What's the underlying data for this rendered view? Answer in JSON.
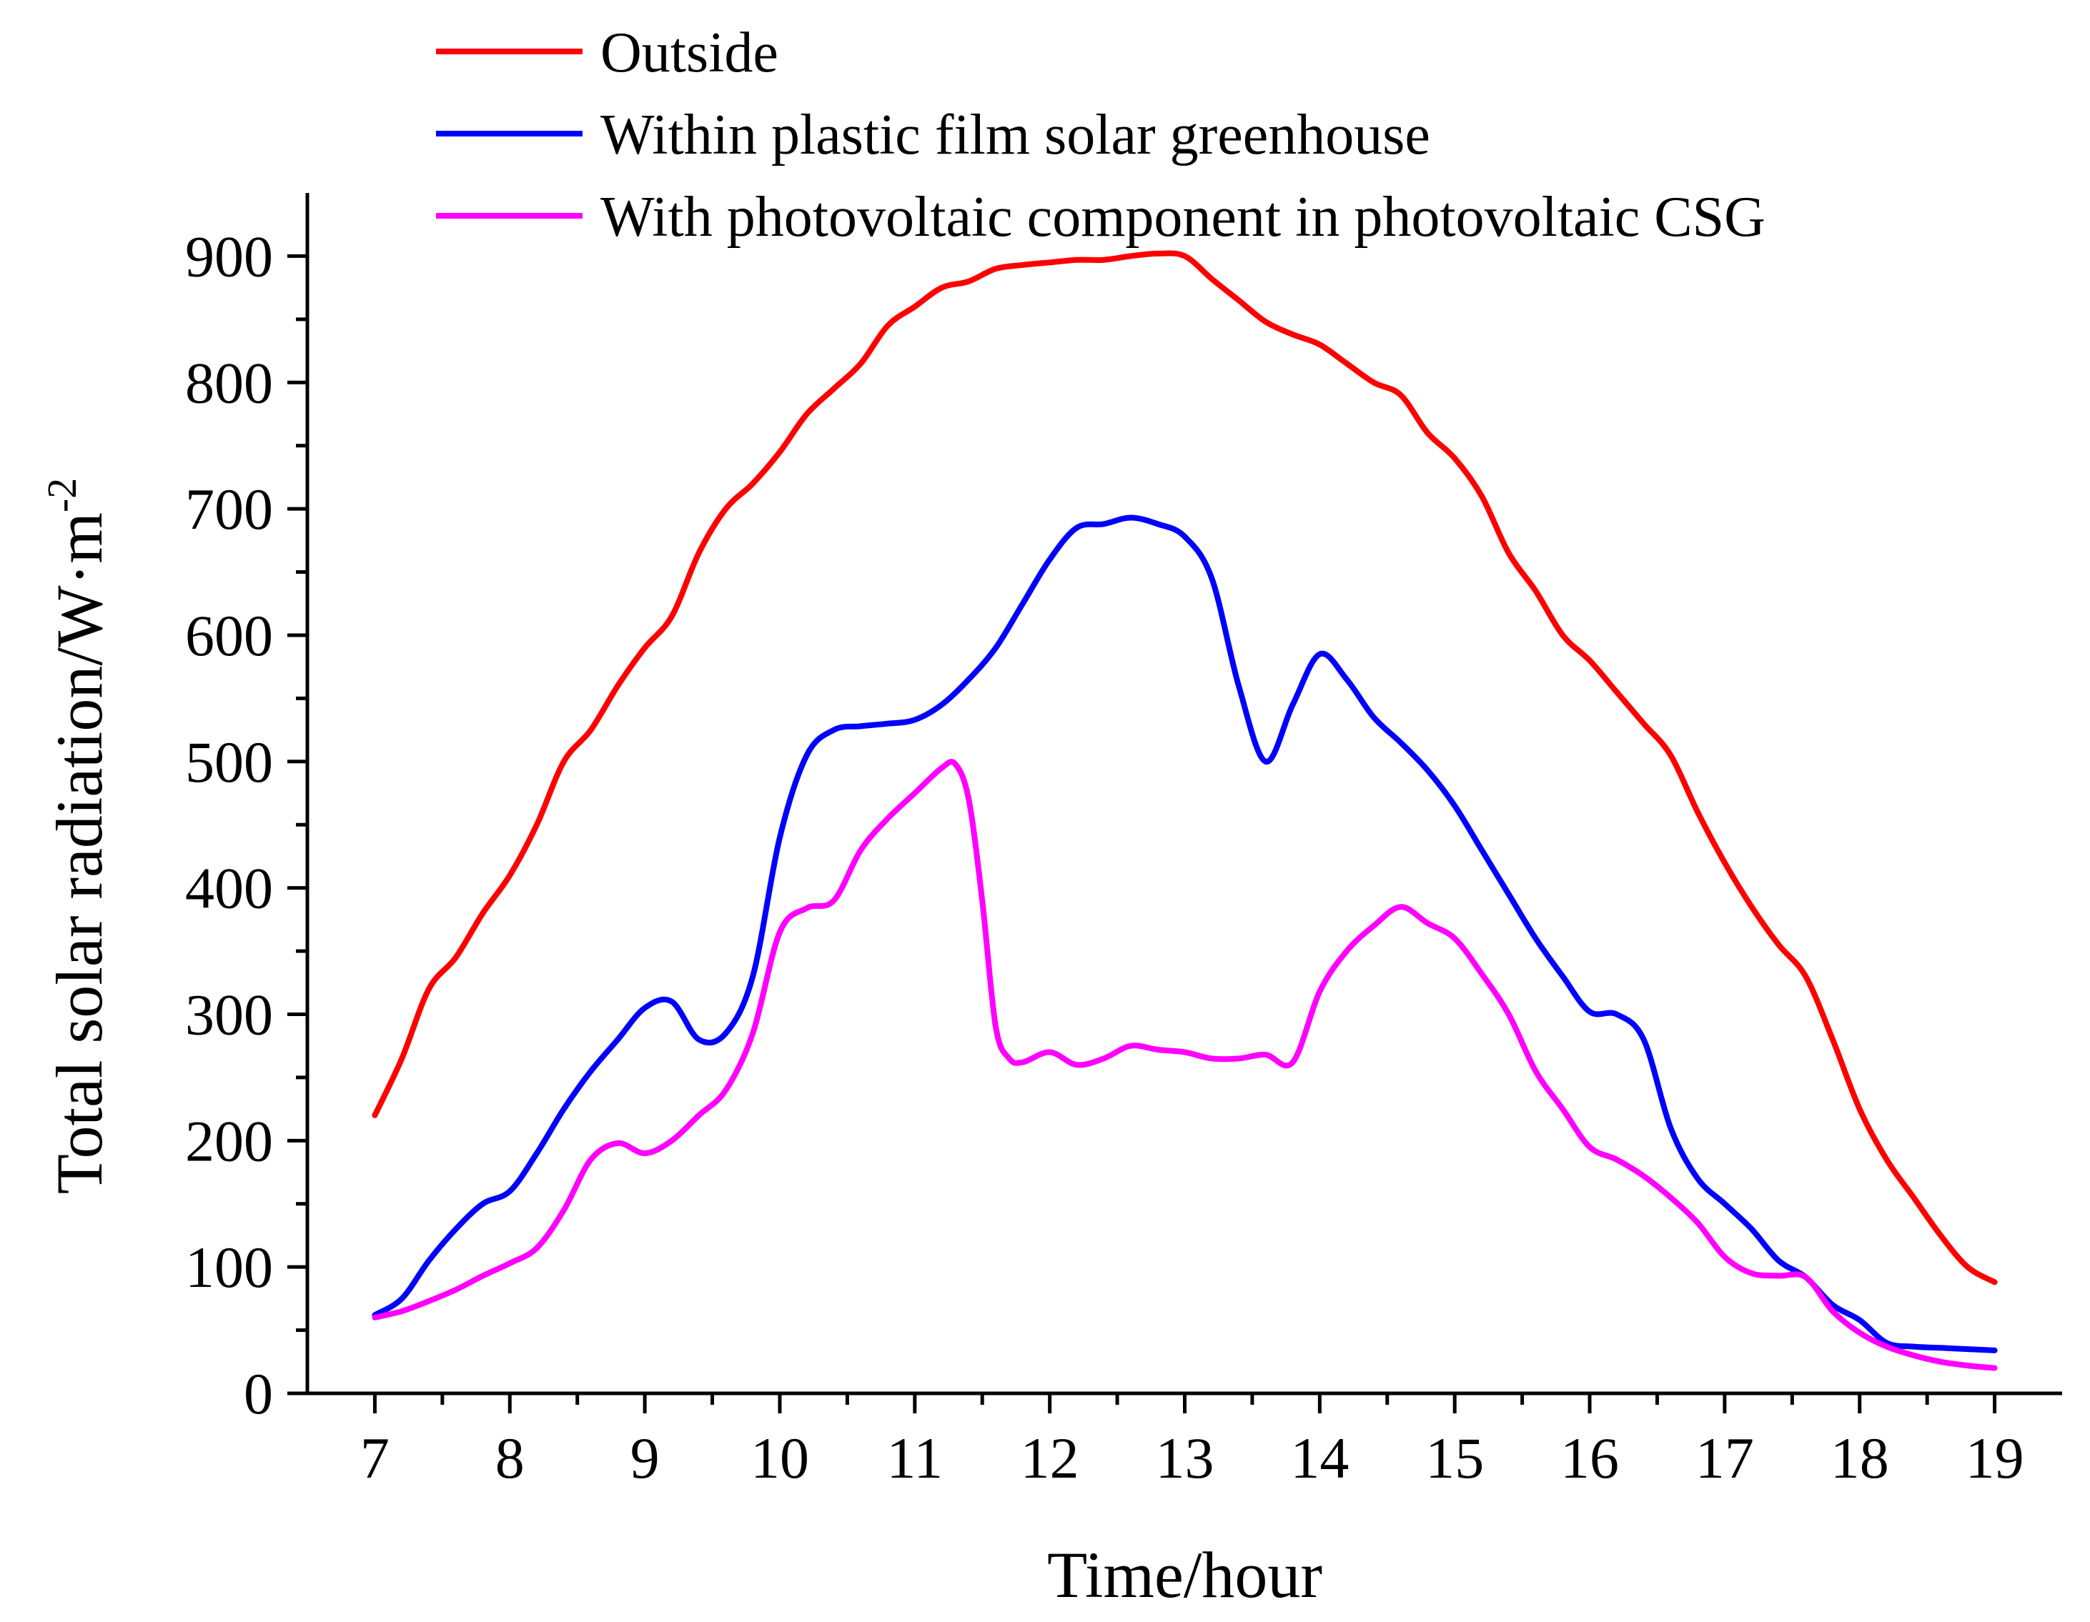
{
  "chart_data": {
    "type": "line",
    "title": "",
    "xlabel": "Time/hour",
    "ylabel": "Total solar radiation/W·m",
    "ylabel_superscript": "-2",
    "xlim": [
      6.5,
      19.5
    ],
    "ylim": [
      0,
      950
    ],
    "x_ticks": [
      7,
      8,
      9,
      10,
      11,
      12,
      13,
      14,
      15,
      16,
      17,
      18,
      19
    ],
    "y_ticks": [
      0,
      100,
      200,
      300,
      400,
      500,
      600,
      700,
      800,
      900
    ],
    "legend_position": "top",
    "series": [
      {
        "name": "Outside",
        "color": "#ff0000",
        "x": [
          7,
          7.2,
          7.4,
          7.6,
          7.8,
          8,
          8.2,
          8.4,
          8.6,
          8.8,
          9,
          9.2,
          9.4,
          9.6,
          9.8,
          10,
          10.2,
          10.4,
          10.6,
          10.8,
          11,
          11.2,
          11.4,
          11.6,
          11.8,
          12,
          12.2,
          12.4,
          12.6,
          12.8,
          13,
          13.2,
          13.4,
          13.6,
          13.8,
          14,
          14.2,
          14.4,
          14.6,
          14.8,
          15,
          15.2,
          15.4,
          15.6,
          15.8,
          16,
          16.2,
          16.4,
          16.6,
          16.8,
          17,
          17.2,
          17.4,
          17.6,
          17.8,
          18,
          18.2,
          18.4,
          18.6,
          18.8,
          19
        ],
        "values": [
          220,
          265,
          320,
          345,
          380,
          410,
          450,
          500,
          525,
          560,
          590,
          615,
          665,
          700,
          720,
          745,
          775,
          795,
          815,
          845,
          860,
          875,
          880,
          890,
          893,
          895,
          897,
          897,
          900,
          902,
          900,
          882,
          865,
          848,
          838,
          830,
          815,
          800,
          790,
          760,
          740,
          710,
          665,
          635,
          600,
          580,
          555,
          530,
          505,
          460,
          420,
          385,
          355,
          330,
          280,
          225,
          185,
          155,
          125,
          100,
          88
        ]
      },
      {
        "name": "Within plastic film solar greenhouse",
        "color": "#0000ff",
        "x": [
          7,
          7.2,
          7.4,
          7.6,
          7.8,
          8,
          8.2,
          8.4,
          8.6,
          8.8,
          9,
          9.2,
          9.4,
          9.6,
          9.8,
          10,
          10.2,
          10.4,
          10.6,
          10.8,
          11,
          11.2,
          11.4,
          11.6,
          11.8,
          12,
          12.2,
          12.4,
          12.6,
          12.8,
          13,
          13.2,
          13.4,
          13.6,
          13.8,
          14,
          14.2,
          14.4,
          14.6,
          14.8,
          15,
          15.2,
          15.4,
          15.6,
          15.8,
          16,
          16.2,
          16.4,
          16.6,
          16.8,
          17,
          17.2,
          17.4,
          17.6,
          17.8,
          18,
          18.2,
          18.4,
          18.6,
          18.8,
          19
        ],
        "values": [
          62,
          75,
          105,
          130,
          150,
          160,
          190,
          225,
          255,
          280,
          305,
          310,
          280,
          285,
          330,
          440,
          505,
          525,
          528,
          530,
          533,
          545,
          565,
          590,
          625,
          660,
          685,
          688,
          693,
          688,
          678,
          645,
          560,
          500,
          545,
          585,
          565,
          535,
          515,
          493,
          465,
          430,
          395,
          360,
          330,
          302,
          300,
          280,
          210,
          170,
          150,
          130,
          105,
          92,
          70,
          58,
          40,
          37,
          36,
          35,
          34
        ]
      },
      {
        "name": "With photovoltaic component in photovoltaic CSG",
        "color": "#ff00ff",
        "x": [
          7,
          7.2,
          7.4,
          7.6,
          7.8,
          8,
          8.2,
          8.4,
          8.6,
          8.8,
          9,
          9.2,
          9.4,
          9.6,
          9.8,
          10,
          10.2,
          10.4,
          10.6,
          10.8,
          11,
          11.2,
          11.3,
          11.4,
          11.5,
          11.6,
          11.7,
          11.8,
          12,
          12.2,
          12.4,
          12.6,
          12.8,
          13,
          13.2,
          13.4,
          13.6,
          13.8,
          14,
          14.2,
          14.4,
          14.6,
          14.8,
          15,
          15.2,
          15.4,
          15.6,
          15.8,
          16,
          16.2,
          16.4,
          16.6,
          16.8,
          17,
          17.2,
          17.4,
          17.6,
          17.8,
          18,
          18.2,
          18.4,
          18.6,
          18.8,
          19
        ],
        "values": [
          60,
          65,
          73,
          82,
          93,
          103,
          115,
          145,
          185,
          198,
          190,
          200,
          220,
          240,
          285,
          365,
          384,
          390,
          430,
          455,
          475,
          495,
          498,
          470,
          390,
          290,
          265,
          262,
          270,
          260,
          265,
          275,
          272,
          270,
          265,
          265,
          268,
          262,
          318,
          350,
          370,
          385,
          372,
          360,
          332,
          300,
          255,
          225,
          195,
          185,
          172,
          155,
          135,
          108,
          95,
          93,
          92,
          65,
          48,
          37,
          30,
          25,
          22,
          20
        ]
      }
    ]
  }
}
